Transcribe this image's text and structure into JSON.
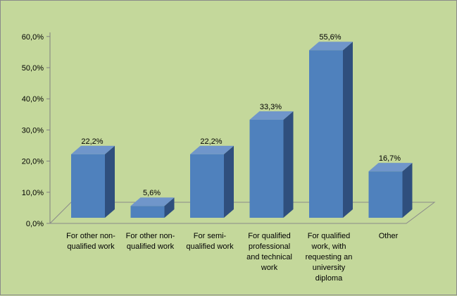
{
  "chart_data": {
    "type": "bar",
    "style": "3d-column",
    "categories": [
      [
        "For other non-",
        "qualified work"
      ],
      [
        "For other non-",
        "qualified work"
      ],
      [
        "For semi-",
        "qualified work"
      ],
      [
        "For qualified",
        "professional",
        "and technical",
        "work"
      ],
      [
        "For qualified",
        "work,  with",
        "requesting an",
        "university",
        "diploma"
      ],
      [
        "Other"
      ]
    ],
    "values": [
      22.2,
      5.6,
      22.2,
      33.3,
      55.6,
      16.7
    ],
    "data_labels": [
      "22,2%",
      "5,6%",
      "22,2%",
      "33,3%",
      "55,6%",
      "16,7%"
    ],
    "y_ticks": [
      "0,0%",
      "10,0%",
      "20,0%",
      "30,0%",
      "40,0%",
      "50,0%",
      "60,0%"
    ],
    "ylim": [
      0,
      60
    ],
    "grid": false,
    "legend": "none",
    "colors": {
      "background": "#c4d89b",
      "bar_front": "#4f81bd",
      "bar_side": "#2f4f7d",
      "bar_top": "#7096ca"
    }
  }
}
